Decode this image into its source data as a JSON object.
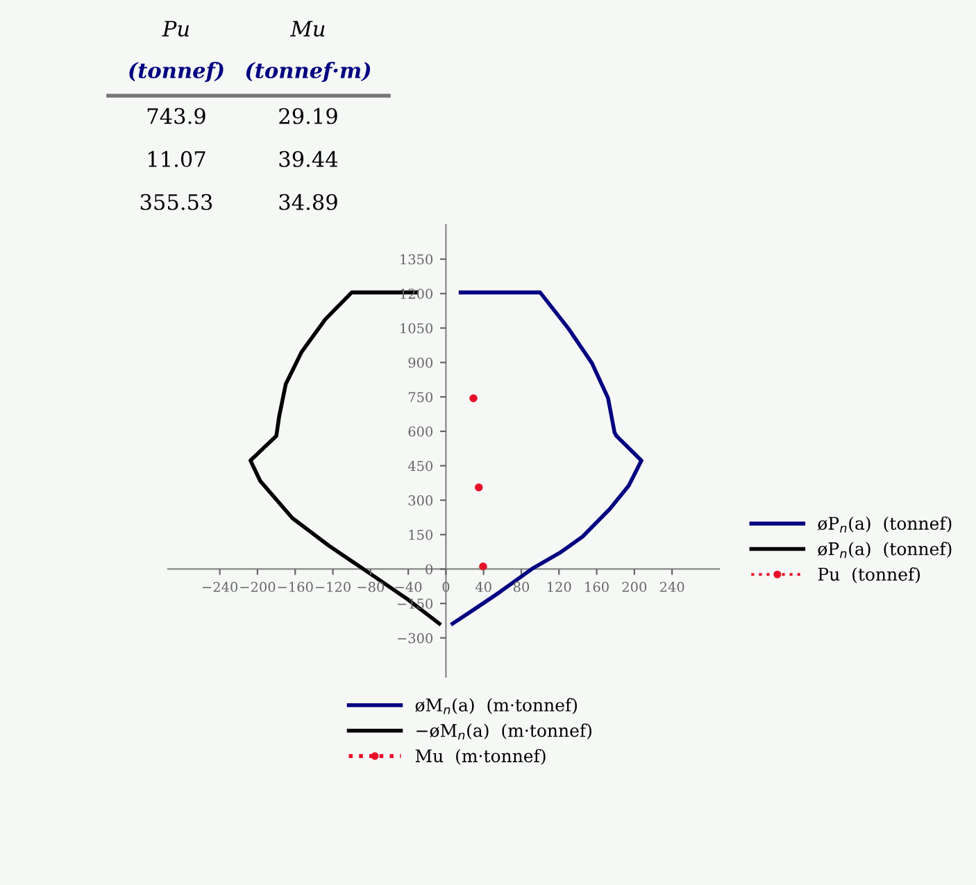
{
  "chart_data": {
    "type": "line",
    "xlim": [
      -295,
      290
    ],
    "ylim": [
      -470,
      1500
    ],
    "xticks": [
      -240,
      -200,
      -160,
      -120,
      -80,
      -40,
      0,
      40,
      80,
      120,
      160,
      200,
      240
    ],
    "yticks": [
      -300,
      -150,
      0,
      150,
      300,
      450,
      600,
      750,
      900,
      1050,
      1200,
      1350
    ],
    "grid": false,
    "legend": "right",
    "series": [
      {
        "name": "øP$_{n}$(a)  (tonnef)",
        "color": "#000080",
        "line_style": "solid",
        "marker": "none",
        "x": [
          15.6,
          100,
          130,
          155,
          172,
          179,
          181,
          207.5,
          194,
          174,
          145,
          121,
          91,
          57,
          28,
          7
        ],
        "values": [
          1205,
          1205,
          1048,
          897,
          746,
          594,
          580,
          473,
          363,
          262,
          141,
          71,
          0,
          -101,
          -181,
          -238
        ]
      },
      {
        "name": "øP$_{n}$(a)  (tonnef)",
        "color": "#000000",
        "line_style": "solid",
        "marker": "none",
        "x": [
          -31,
          -100,
          -128,
          -153,
          -170,
          -177,
          -180,
          -207.5,
          -197,
          -163,
          -124,
          -84,
          -41,
          -7
        ],
        "values": [
          1205,
          1205,
          1088,
          947,
          806,
          665,
          580,
          473,
          383,
          222,
          101,
          -10,
          -131,
          -238
        ]
      },
      {
        "name": "Pu  (tonnef)",
        "type": "scatter",
        "color": "#e8102a",
        "marker": "circle",
        "x": [
          29.19,
          39.44,
          34.89
        ],
        "values": [
          743.9,
          11.07,
          355.53
        ]
      }
    ],
    "annotations": [
      "Pu",
      "(tonnef)",
      "Mu",
      "(tonnef·m)",
      "øM$_{n}$(a)  (m·tonnef)",
      "−øM$_{n}$(a)  (m·tonnef)",
      "Mu  (m·tonnef)",
      "743.9",
      "29.19",
      "11.07",
      "39.44",
      "355.53",
      "34.89"
    ]
  }
}
